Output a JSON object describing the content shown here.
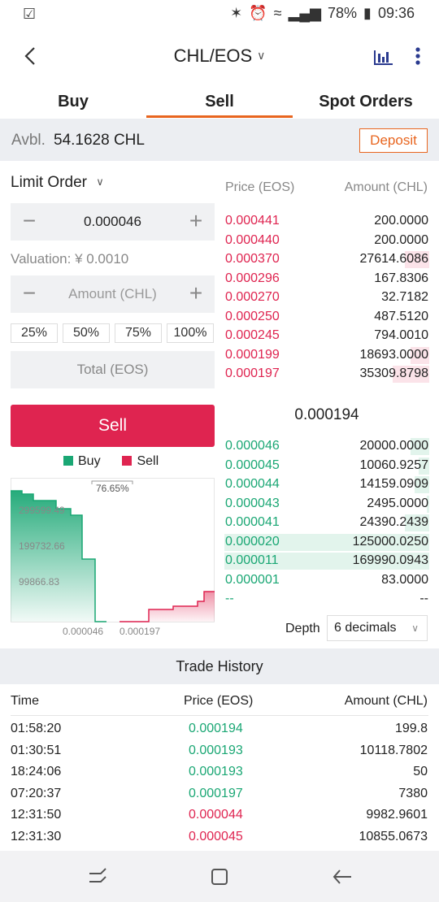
{
  "status_bar": {
    "time": "09:36",
    "battery": "78%"
  },
  "header": {
    "pair": "CHL/EOS"
  },
  "tabs": [
    {
      "label": "Buy",
      "active": false
    },
    {
      "label": "Sell",
      "active": true
    },
    {
      "label": "Spot Orders",
      "active": false
    }
  ],
  "balance": {
    "label": "Avbl.",
    "value": "54.1628 CHL",
    "deposit_label": "Deposit"
  },
  "order_form": {
    "order_type": "Limit Order",
    "price_value": "0.000046",
    "valuation": "Valuation: ¥ 0.0010",
    "amount_placeholder": "Amount (CHL)",
    "percent_options": [
      "25%",
      "50%",
      "75%",
      "100%"
    ],
    "total_placeholder": "Total (EOS)",
    "submit_label": "Sell"
  },
  "depth_chart": {
    "legend": {
      "buy": "Buy",
      "sell": "Sell"
    },
    "y_labels": [
      "299599.49",
      "199732.66",
      "99866.83"
    ],
    "x_labels": [
      "0.000046",
      "0.000197"
    ],
    "annotation": "76.65%",
    "colors": {
      "buy": "#1aa774",
      "sell": "#df2450"
    }
  },
  "order_book": {
    "price_header": "Price (EOS)",
    "amount_header": "Amount (CHL)",
    "asks": [
      {
        "price": "0.000441",
        "amount": "200.0000",
        "depth": 0.0
      },
      {
        "price": "0.000440",
        "amount": "200.0000",
        "depth": 0.0
      },
      {
        "price": "0.000370",
        "amount": "27614.6086",
        "depth": 0.12
      },
      {
        "price": "0.000296",
        "amount": "167.8306",
        "depth": 0.0
      },
      {
        "price": "0.000270",
        "amount": "32.7182",
        "depth": 0.0
      },
      {
        "price": "0.000250",
        "amount": "487.5120",
        "depth": 0.0
      },
      {
        "price": "0.000245",
        "amount": "794.0010",
        "depth": 0.0
      },
      {
        "price": "0.000199",
        "amount": "18693.0000",
        "depth": 0.09
      },
      {
        "price": "0.000197",
        "amount": "35309.8798",
        "depth": 0.18
      }
    ],
    "last_price": "0.000194",
    "bids": [
      {
        "price": "0.000046",
        "amount": "20000.0000",
        "depth": 0.09
      },
      {
        "price": "0.000045",
        "amount": "10060.9257",
        "depth": 0.05
      },
      {
        "price": "0.000044",
        "amount": "14159.0909",
        "depth": 0.07
      },
      {
        "price": "0.000043",
        "amount": "2495.0000",
        "depth": 0.01
      },
      {
        "price": "0.000041",
        "amount": "24390.2439",
        "depth": 0.12
      },
      {
        "price": "0.000020",
        "amount": "125000.0250",
        "depth": 1.0
      },
      {
        "price": "0.000011",
        "amount": "169990.0943",
        "depth": 1.0
      },
      {
        "price": "0.000001",
        "amount": "83.0000",
        "depth": 0.0
      },
      {
        "price": "--",
        "amount": "--",
        "depth": 0.0
      }
    ],
    "depth_label": "Depth",
    "decimals": "6 decimals"
  },
  "trade_history": {
    "title": "Trade History",
    "headers": {
      "time": "Time",
      "price": "Price (EOS)",
      "amount": "Amount (CHL)"
    },
    "rows": [
      {
        "time": "01:58:20",
        "price": "0.000194",
        "amount": "199.8",
        "side": "buy"
      },
      {
        "time": "01:30:51",
        "price": "0.000193",
        "amount": "10118.7802",
        "side": "buy"
      },
      {
        "time": "18:24:06",
        "price": "0.000193",
        "amount": "50",
        "side": "buy"
      },
      {
        "time": "07:20:37",
        "price": "0.000197",
        "amount": "7380",
        "side": "buy"
      },
      {
        "time": "12:31:50",
        "price": "0.000044",
        "amount": "9982.9601",
        "side": "sell"
      },
      {
        "time": "12:31:30",
        "price": "0.000045",
        "amount": "10855.0673",
        "side": "sell"
      }
    ]
  }
}
